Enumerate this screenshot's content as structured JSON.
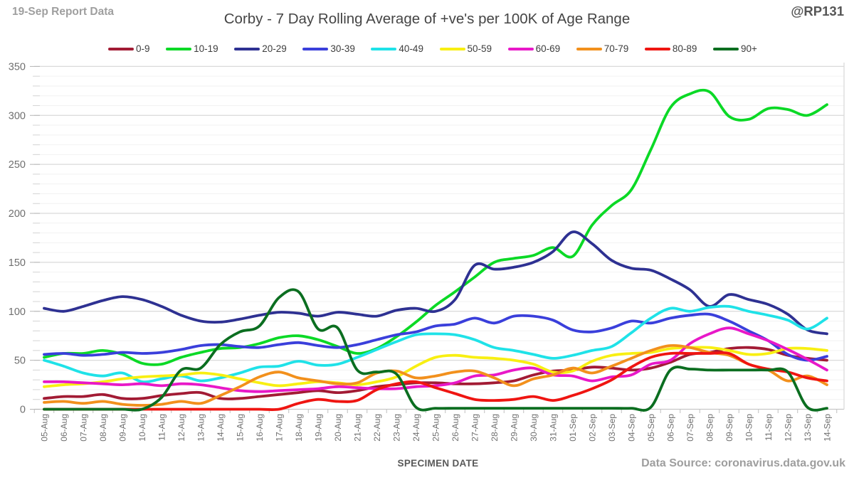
{
  "header": {
    "report_label": "19-Sep Report Data",
    "handle": "@RP131"
  },
  "footer": {
    "data_source": "Data Source: coronavirus.data.gov.uk"
  },
  "chart_data": {
    "type": "line",
    "title": "Corby - 7 Day Rolling Average of +ve's per 100K of Age Range",
    "xlabel": "SPECIMEN DATE",
    "ylabel": "",
    "ylim": [
      0,
      350
    ],
    "ytick_step": 50,
    "y_minor_step": 10,
    "grid": true,
    "legend_position": "top",
    "smooth_lines": true,
    "x": [
      "05-Aug",
      "06-Aug",
      "07-Aug",
      "08-Aug",
      "09-Aug",
      "10-Aug",
      "11-Aug",
      "12-Aug",
      "13-Aug",
      "14-Aug",
      "15-Aug",
      "16-Aug",
      "17-Aug",
      "18-Aug",
      "19-Aug",
      "20-Aug",
      "21-Aug",
      "22-Aug",
      "23-Aug",
      "24-Aug",
      "25-Aug",
      "26-Aug",
      "27-Aug",
      "28-Aug",
      "29-Aug",
      "30-Aug",
      "31-Aug",
      "01-Sep",
      "02-Sep",
      "03-Sep",
      "04-Sep",
      "05-Sep",
      "06-Sep",
      "07-Sep",
      "08-Sep",
      "09-Sep",
      "10-Sep",
      "11-Sep",
      "12-Sep",
      "13-Sep",
      "14-Sep"
    ],
    "series": [
      {
        "name": "0-9",
        "color": "#A21B34",
        "values": [
          11,
          13,
          13,
          15,
          11,
          11,
          14,
          16,
          17,
          11,
          11,
          13,
          15,
          17,
          19,
          17,
          19,
          23,
          25,
          27,
          27,
          26,
          26,
          27,
          29,
          35,
          39,
          40,
          43,
          42,
          40,
          42,
          48,
          56,
          58,
          62,
          63,
          61,
          55,
          52,
          50
        ]
      },
      {
        "name": "10-19",
        "color": "#0BD926",
        "values": [
          53,
          57,
          57,
          60,
          56,
          47,
          46,
          53,
          58,
          62,
          63,
          67,
          73,
          75,
          71,
          64,
          57,
          62,
          74,
          89,
          106,
          120,
          135,
          150,
          154,
          157,
          165,
          156,
          188,
          208,
          224,
          265,
          308,
          322,
          324,
          299,
          296,
          307,
          306,
          300,
          311
        ]
      },
      {
        "name": "20-29",
        "color": "#2E3192",
        "values": [
          103,
          100,
          105,
          111,
          115,
          112,
          105,
          96,
          90,
          89,
          92,
          96,
          99,
          98,
          95,
          99,
          97,
          95,
          101,
          103,
          100,
          112,
          147,
          143,
          145,
          150,
          161,
          181,
          169,
          152,
          144,
          142,
          133,
          122,
          105,
          117,
          112,
          107,
          97,
          81,
          77
        ]
      },
      {
        "name": "30-39",
        "color": "#3A3FDB",
        "values": [
          56,
          57,
          55,
          56,
          58,
          57,
          58,
          61,
          65,
          66,
          64,
          63,
          66,
          68,
          65,
          63,
          66,
          71,
          76,
          79,
          85,
          87,
          93,
          88,
          95,
          95,
          91,
          81,
          79,
          83,
          90,
          88,
          93,
          96,
          97,
          90,
          80,
          70,
          56,
          50,
          54
        ]
      },
      {
        "name": "40-49",
        "color": "#1FE2E8",
        "values": [
          50,
          44,
          37,
          34,
          37,
          28,
          31,
          34,
          29,
          32,
          37,
          43,
          44,
          49,
          45,
          46,
          53,
          61,
          69,
          76,
          77,
          76,
          71,
          63,
          60,
          56,
          52,
          55,
          60,
          64,
          78,
          93,
          103,
          100,
          104,
          105,
          100,
          96,
          91,
          82,
          93
        ]
      },
      {
        "name": "50-59",
        "color": "#F8EF12",
        "values": [
          23,
          25,
          26,
          28,
          31,
          33,
          34,
          35,
          37,
          35,
          31,
          27,
          24,
          26,
          28,
          27,
          25,
          28,
          33,
          44,
          53,
          55,
          53,
          52,
          50,
          46,
          38,
          39,
          49,
          55,
          57,
          58,
          62,
          63,
          63,
          60,
          56,
          57,
          62,
          62,
          60
        ]
      },
      {
        "name": "60-69",
        "color": "#E818C8",
        "values": [
          28,
          28,
          27,
          26,
          25,
          26,
          24,
          26,
          25,
          22,
          19,
          18,
          19,
          20,
          21,
          23,
          22,
          21,
          21,
          23,
          24,
          27,
          34,
          35,
          40,
          42,
          35,
          34,
          29,
          33,
          35,
          46,
          50,
          67,
          77,
          83,
          77,
          70,
          61,
          51,
          40
        ]
      },
      {
        "name": "70-79",
        "color": "#F2901C",
        "values": [
          7,
          8,
          6,
          8,
          5,
          4,
          5,
          8,
          6,
          14,
          23,
          33,
          38,
          32,
          29,
          26,
          27,
          37,
          39,
          32,
          34,
          38,
          39,
          32,
          24,
          31,
          35,
          42,
          37,
          44,
          52,
          60,
          65,
          63,
          58,
          55,
          46,
          40,
          29,
          34,
          25
        ]
      },
      {
        "name": "80-89",
        "color": "#EF1511",
        "values": [
          0,
          0,
          0,
          0,
          0,
          0,
          0,
          0,
          0,
          0,
          0,
          0,
          0,
          6,
          10,
          8,
          9,
          20,
          26,
          28,
          22,
          16,
          10,
          9,
          10,
          13,
          9,
          14,
          21,
          30,
          43,
          53,
          57,
          57,
          57,
          57,
          46,
          41,
          38,
          32,
          29
        ]
      },
      {
        "name": "90+",
        "color": "#0B6E20",
        "values": [
          0,
          0,
          0,
          0,
          0,
          0,
          12,
          40,
          42,
          66,
          79,
          85,
          114,
          120,
          82,
          83,
          40,
          38,
          36,
          2,
          1,
          1,
          1,
          1,
          1,
          1,
          1,
          1,
          1,
          1,
          1,
          2,
          40,
          41,
          40,
          40,
          40,
          40,
          38,
          2,
          1
        ]
      }
    ]
  }
}
